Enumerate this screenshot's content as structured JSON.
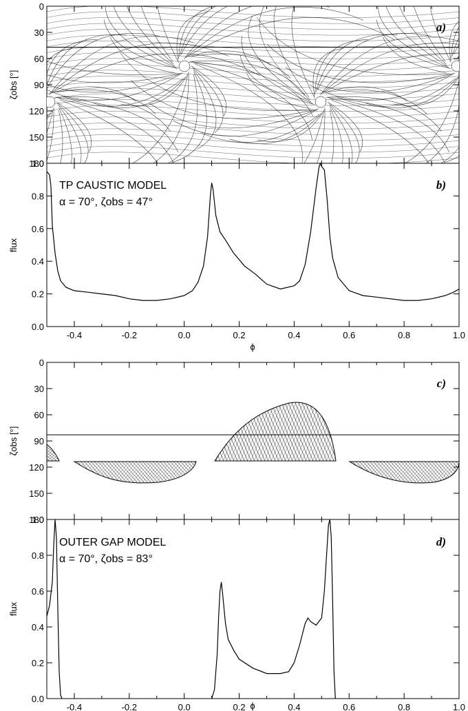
{
  "chart_data": [
    {
      "type": "line",
      "panel_label": "a)",
      "ylabel": "ζobs [°]",
      "xlim": [
        -0.5,
        1.0
      ],
      "ylim": [
        180,
        0
      ],
      "yticks": [
        "0",
        "30",
        "60",
        "90",
        "120",
        "150",
        "180"
      ],
      "observer_line_zeta": 47,
      "field_line_density": "dense"
    },
    {
      "type": "line",
      "panel_label": "b)",
      "title": "TP CAUSTIC MODEL",
      "subtitle": "α = 70°,  ζobs = 47°",
      "xlabel": "ϕ",
      "ylabel": "flux",
      "xlim": [
        -0.5,
        1.0
      ],
      "ylim": [
        0.0,
        1.0
      ],
      "xticks": [
        "-0.4",
        "-0.2",
        "0.0",
        "0.2",
        "0.4",
        "0.6",
        "0.8",
        "1.0"
      ],
      "yticks": [
        "0.0",
        "0.2",
        "0.4",
        "0.6",
        "0.8",
        "1.0"
      ],
      "x": [
        -0.5,
        -0.49,
        -0.485,
        -0.48,
        -0.47,
        -0.46,
        -0.45,
        -0.43,
        -0.4,
        -0.35,
        -0.3,
        -0.25,
        -0.2,
        -0.15,
        -0.1,
        -0.05,
        0.0,
        0.03,
        0.05,
        0.07,
        0.085,
        0.095,
        0.1,
        0.105,
        0.115,
        0.13,
        0.15,
        0.18,
        0.22,
        0.26,
        0.3,
        0.35,
        0.4,
        0.42,
        0.44,
        0.46,
        0.48,
        0.49,
        0.495,
        0.5,
        0.51,
        0.52,
        0.53,
        0.54,
        0.56,
        0.6,
        0.65,
        0.7,
        0.8,
        0.85,
        0.9,
        0.95,
        0.98,
        1.0
      ],
      "y": [
        0.95,
        0.93,
        0.86,
        0.62,
        0.45,
        0.34,
        0.28,
        0.24,
        0.22,
        0.21,
        0.2,
        0.19,
        0.17,
        0.16,
        0.16,
        0.17,
        0.19,
        0.22,
        0.27,
        0.37,
        0.55,
        0.8,
        0.88,
        0.84,
        0.68,
        0.58,
        0.53,
        0.45,
        0.37,
        0.32,
        0.26,
        0.23,
        0.25,
        0.28,
        0.38,
        0.58,
        0.85,
        0.97,
        1.01,
        0.98,
        0.96,
        0.78,
        0.55,
        0.42,
        0.3,
        0.22,
        0.19,
        0.18,
        0.16,
        0.16,
        0.17,
        0.19,
        0.21,
        0.23
      ]
    },
    {
      "type": "line",
      "panel_label": "c)",
      "ylabel": "ζobs [°]",
      "xlim": [
        -0.5,
        1.0
      ],
      "ylim": [
        180,
        0
      ],
      "yticks": [
        "0",
        "30",
        "60",
        "90",
        "120",
        "150",
        "180"
      ],
      "observer_line_zeta": 83
    },
    {
      "type": "line",
      "panel_label": "d)",
      "title": "OUTER GAP MODEL",
      "subtitle": "α = 70°,  ζobs = 83°",
      "xlabel": "ϕ",
      "ylabel": "flux",
      "xlim": [
        -0.5,
        1.0
      ],
      "ylim": [
        0.0,
        1.0
      ],
      "xticks": [
        "-0.4",
        "-0.2",
        "0.0",
        "0.2",
        "0.4",
        "0.6",
        "0.8",
        "1.0"
      ],
      "yticks": [
        "0.0",
        "0.2",
        "0.4",
        "0.6",
        "0.8",
        "1.0"
      ],
      "x": [
        -0.5,
        -0.49,
        -0.48,
        -0.475,
        -0.47,
        -0.465,
        -0.46,
        -0.455,
        -0.45,
        -0.445,
        0.1,
        0.11,
        0.12,
        0.125,
        0.13,
        0.135,
        0.14,
        0.15,
        0.16,
        0.18,
        0.2,
        0.25,
        0.3,
        0.35,
        0.38,
        0.4,
        0.42,
        0.44,
        0.45,
        0.46,
        0.48,
        0.5,
        0.51,
        0.52,
        0.525,
        0.53,
        0.535,
        0.54,
        0.545,
        0.55
      ],
      "y": [
        0.46,
        0.52,
        0.65,
        0.85,
        1.01,
        0.9,
        0.5,
        0.15,
        0.02,
        0.0,
        0.0,
        0.05,
        0.25,
        0.45,
        0.6,
        0.65,
        0.58,
        0.42,
        0.33,
        0.27,
        0.22,
        0.17,
        0.14,
        0.14,
        0.15,
        0.2,
        0.3,
        0.42,
        0.45,
        0.43,
        0.41,
        0.45,
        0.6,
        0.85,
        0.97,
        1.01,
        0.9,
        0.55,
        0.15,
        0.0
      ]
    }
  ]
}
